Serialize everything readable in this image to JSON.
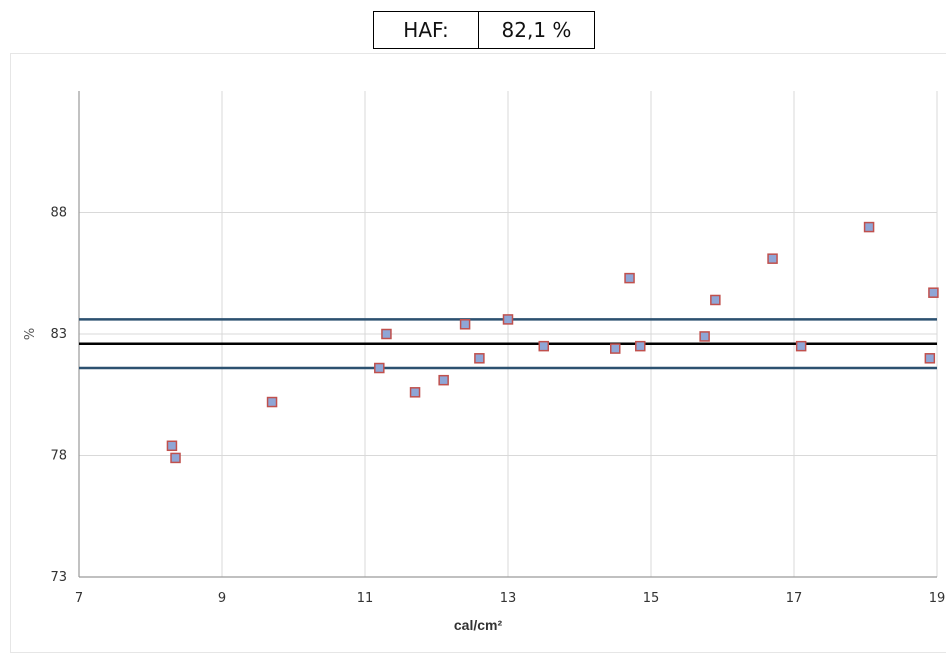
{
  "summary": {
    "label": "HAF:",
    "value": "82,1 %"
  },
  "chart_data": {
    "type": "scatter",
    "xlabel": "cal/cm²",
    "ylabel": "%",
    "xlim": [
      7,
      19
    ],
    "ylim": [
      73,
      93
    ],
    "x_ticks": [
      7,
      9,
      11,
      13,
      15,
      17,
      19
    ],
    "y_ticks": [
      73,
      78,
      83,
      88
    ],
    "grid": true,
    "points": [
      {
        "x": 8.3,
        "y": 78.4
      },
      {
        "x": 8.35,
        "y": 77.9
      },
      {
        "x": 9.7,
        "y": 80.2
      },
      {
        "x": 11.2,
        "y": 81.6
      },
      {
        "x": 11.3,
        "y": 83.0
      },
      {
        "x": 11.7,
        "y": 80.6
      },
      {
        "x": 12.1,
        "y": 81.1
      },
      {
        "x": 12.4,
        "y": 83.4
      },
      {
        "x": 12.6,
        "y": 82.0
      },
      {
        "x": 13.0,
        "y": 83.6
      },
      {
        "x": 13.5,
        "y": 82.5
      },
      {
        "x": 14.5,
        "y": 82.4
      },
      {
        "x": 14.7,
        "y": 85.3
      },
      {
        "x": 14.85,
        "y": 82.5
      },
      {
        "x": 15.75,
        "y": 82.9
      },
      {
        "x": 15.9,
        "y": 84.4
      },
      {
        "x": 16.7,
        "y": 86.1
      },
      {
        "x": 17.1,
        "y": 82.5
      },
      {
        "x": 18.05,
        "y": 87.4
      },
      {
        "x": 18.9,
        "y": 82.0
      },
      {
        "x": 18.95,
        "y": 84.7
      }
    ],
    "reference_lines": [
      {
        "y": 83.6,
        "color": "#2c5170"
      },
      {
        "y": 82.6,
        "color": "#000000"
      },
      {
        "y": 81.6,
        "color": "#2c5170"
      }
    ],
    "marker_fill": "#8fa6d6",
    "marker_stroke": "#c0504d",
    "grid_color": "#d9d9d9",
    "axis_color": "#9a9a9a"
  }
}
